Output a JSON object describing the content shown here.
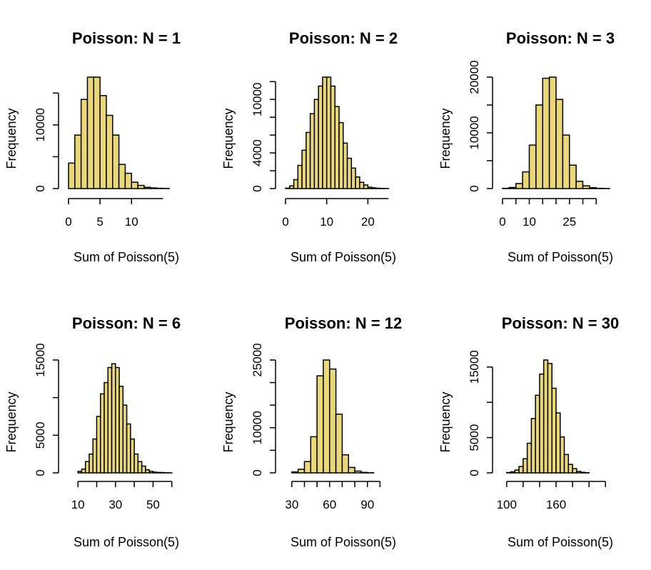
{
  "colors": {
    "bar_fill": "#EAD878",
    "bar_stroke": "#000000",
    "background": "#FFFFFF"
  },
  "chart_data": [
    {
      "type": "bar",
      "title": "Poisson: N = 1",
      "xlabel": "Sum of Poisson(5)",
      "ylabel": "Frequency",
      "bin_width": 1,
      "bin_start": 0,
      "values": [
        4000,
        8400,
        14000,
        17500,
        17500,
        14600,
        11500,
        8400,
        3800,
        2400,
        1000,
        500,
        200,
        100,
        50,
        20
      ],
      "xlim": [
        0,
        17
      ],
      "ylim": [
        0,
        17500
      ],
      "xticks": [
        0,
        5,
        10
      ],
      "xtick_labels": [
        "0",
        "5",
        "10"
      ],
      "xaxis_end": 15,
      "yticks": [
        0,
        5000,
        10000,
        15000
      ],
      "ytick_labels": [
        "0",
        "",
        "10000",
        ""
      ]
    },
    {
      "type": "bar",
      "title": "Poisson: N = 2",
      "xlabel": "Sum of Poisson(5)",
      "ylabel": "Frequency",
      "bin_width": 1,
      "bin_start": 0,
      "values": [
        50,
        300,
        1000,
        2600,
        4300,
        6300,
        8400,
        10000,
        11500,
        12500,
        12500,
        11500,
        9200,
        7400,
        5100,
        3400,
        2300,
        1300,
        700,
        400,
        150,
        80,
        40,
        20,
        10
      ],
      "xlim": [
        0,
        26
      ],
      "ylim": [
        0,
        12500
      ],
      "xticks": [
        0,
        10,
        20
      ],
      "xtick_labels": [
        "0",
        "10",
        "20"
      ],
      "xaxis_end": 25,
      "yticks": [
        0,
        2000,
        4000,
        6000,
        8000,
        10000,
        12000
      ],
      "ytick_labels": [
        "0",
        "",
        "4000",
        "",
        "",
        "10000",
        ""
      ]
    },
    {
      "type": "bar",
      "title": "Poisson: N = 3",
      "xlabel": "Sum of Poisson(5)",
      "ylabel": "Frequency",
      "bin_width": 2.5,
      "bin_start": 0,
      "values": [
        50,
        200,
        900,
        3000,
        7800,
        15000,
        19800,
        20000,
        16000,
        9600,
        4200,
        1300,
        500,
        150,
        50,
        20
      ],
      "xlim": [
        0,
        40
      ],
      "ylim": [
        0,
        20000
      ],
      "xticks": [
        0,
        5,
        10,
        15,
        20,
        25,
        30,
        35
      ],
      "xtick_labels": [
        "0",
        "",
        "10",
        "",
        "",
        "25",
        "",
        ""
      ],
      "xaxis_end": 35,
      "yticks": [
        0,
        5000,
        10000,
        15000,
        20000
      ],
      "ytick_labels": [
        "0",
        "",
        "10000",
        "",
        "20000"
      ]
    },
    {
      "type": "bar",
      "title": "Poisson: N = 6",
      "xlabel": "Sum of Poisson(5)",
      "ylabel": "Frequency",
      "bin_width": 2,
      "bin_start": 10,
      "values": [
        200,
        500,
        1500,
        2500,
        4500,
        7500,
        10500,
        12000,
        14000,
        14500,
        14000,
        11500,
        9000,
        6500,
        4500,
        2500,
        1500,
        900,
        400,
        200,
        100,
        60,
        40,
        20,
        10
      ],
      "xlim": [
        5,
        62
      ],
      "ylim": [
        0,
        15000
      ],
      "xticks": [
        10,
        20,
        30,
        40,
        50,
        60
      ],
      "xtick_labels": [
        "10",
        "",
        "30",
        "",
        "50",
        ""
      ],
      "xaxis_end": 60,
      "yticks": [
        0,
        5000,
        10000,
        15000
      ],
      "ytick_labels": [
        "0",
        "5000",
        "",
        "15000"
      ]
    },
    {
      "type": "bar",
      "title": "Poisson: N = 12",
      "xlabel": "Sum of Poisson(5)",
      "ylabel": "Frequency",
      "bin_width": 5,
      "bin_start": 30,
      "values": [
        200,
        800,
        2500,
        8000,
        21500,
        25000,
        23000,
        13000,
        4000,
        1200,
        400,
        100,
        30
      ],
      "xlim": [
        25,
        110
      ],
      "ylim": [
        0,
        25000
      ],
      "xticks": [
        30,
        40,
        50,
        60,
        70,
        80,
        90,
        100
      ],
      "xtick_labels": [
        "30",
        "",
        "",
        "60",
        "",
        "",
        "90",
        ""
      ],
      "xaxis_end": 100,
      "yticks": [
        0,
        5000,
        10000,
        15000,
        20000,
        25000
      ],
      "ytick_labels": [
        "0",
        "",
        "10000",
        "",
        "",
        "25000"
      ]
    },
    {
      "type": "bar",
      "title": "Poisson: N = 30",
      "xlabel": "Sum of Poisson(5)",
      "ylabel": "Frequency",
      "bin_width": 5,
      "bin_start": 100,
      "values": [
        50,
        150,
        400,
        900,
        2000,
        4200,
        7700,
        11000,
        14000,
        16000,
        15500,
        12000,
        8500,
        5100,
        2600,
        1200,
        600,
        200,
        80,
        30
      ],
      "xlim": [
        95,
        225
      ],
      "ylim": [
        0,
        16000
      ],
      "xticks": [
        100,
        120,
        140,
        160,
        180,
        200,
        220
      ],
      "xtick_labels": [
        "100",
        "",
        "",
        "160",
        "",
        "",
        ""
      ],
      "xaxis_end": 220,
      "yticks": [
        0,
        5000,
        10000,
        15000
      ],
      "ytick_labels": [
        "0",
        "5000",
        "",
        "15000"
      ]
    }
  ]
}
